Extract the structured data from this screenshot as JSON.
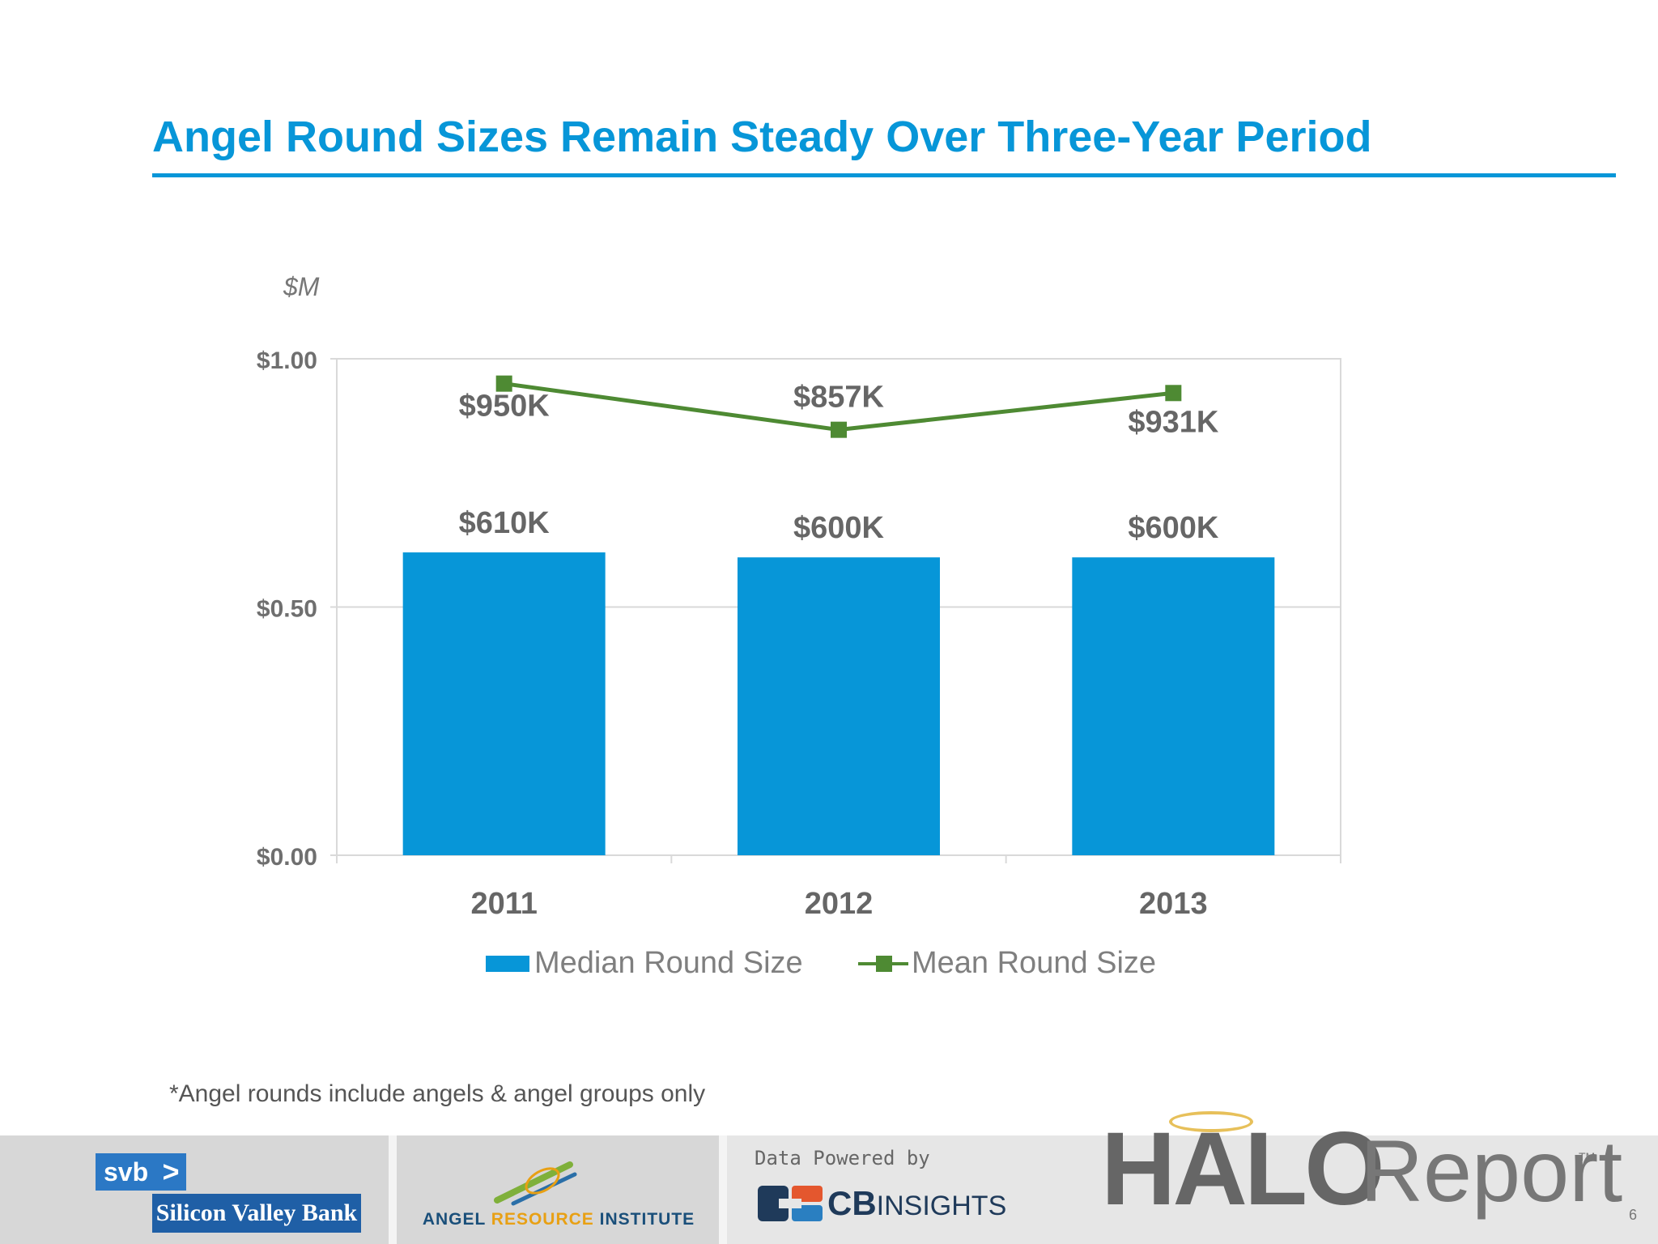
{
  "slide": {
    "title": "Angel Round Sizes Remain Steady Over Three-Year Period",
    "unit_label": "$M",
    "footnote": "*Angel rounds include angels & angel groups only",
    "page_number": "6"
  },
  "chart_data": {
    "type": "bar",
    "categories": [
      "2011",
      "2012",
      "2013"
    ],
    "series": [
      {
        "name": "Median Round Size",
        "type": "bar",
        "values": [
          0.61,
          0.6,
          0.6
        ],
        "labels": [
          "$610K",
          "$600K",
          "$600K"
        ],
        "color": "#0796d8"
      },
      {
        "name": "Mean Round Size",
        "type": "line",
        "values": [
          0.95,
          0.857,
          0.931
        ],
        "labels": [
          "$950K",
          "$857K",
          "$931K"
        ],
        "color": "#4e8a33"
      }
    ],
    "ylim": [
      0,
      1
    ],
    "yticks": [
      0,
      0.5,
      1
    ],
    "ytick_labels": [
      "$0.00",
      "$0.50",
      "$1.00"
    ],
    "grid": true,
    "legend_position": "bottom"
  },
  "footer": {
    "svb_abbr": "svb",
    "svb_chevron": ">",
    "svb_name": "Silicon Valley Bank",
    "ari_part1": "ANGEL",
    "ari_part2": "RESOURCE",
    "ari_part3": "INSTITUTE",
    "powered_by": "Data Powered by",
    "cb_bold": "CB",
    "cb_light": "INSIGHTS",
    "halo": "HALO",
    "report": "Report",
    "trademark": "TM"
  }
}
